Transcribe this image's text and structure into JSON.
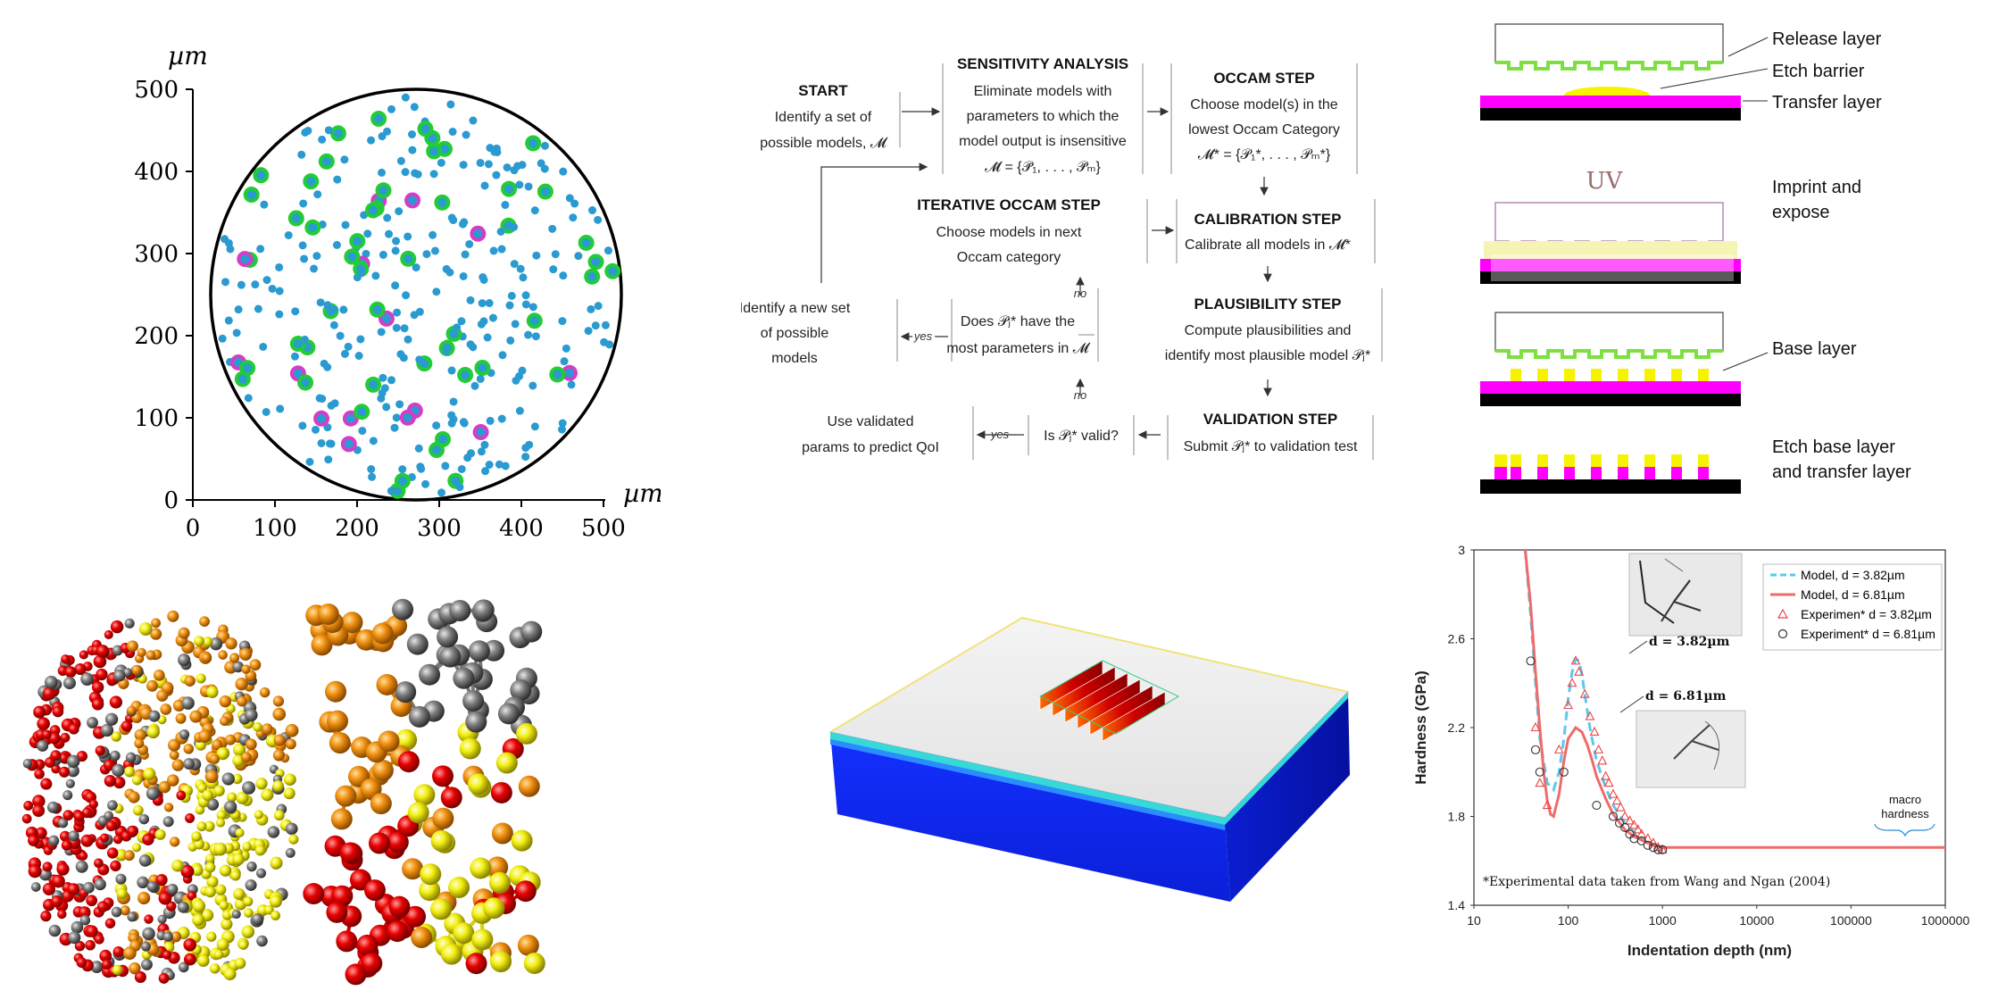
{
  "wafer_plot": {
    "unit_label": "µm",
    "x_ticks": [
      "0",
      "100",
      "200",
      "300",
      "400",
      "500"
    ],
    "y_ticks": [
      "0",
      "100",
      "200",
      "300",
      "400",
      "500"
    ],
    "colors": {
      "blue": "#2a9ad1",
      "green": "#22cc33",
      "magenta": "#d63cc8",
      "circle": "#000000"
    }
  },
  "flowchart": {
    "start": {
      "title": "START",
      "lines": [
        "Identify a set of",
        "possible models, 𝓜"
      ]
    },
    "sensitivity": {
      "title": "SENSITIVITY ANALYSIS",
      "lines": [
        "Eliminate models with",
        "parameters to which the",
        "model output is insensitive",
        "𝓜̄ = {𝒫̄₁, . . . , 𝒫̄ₘ}"
      ]
    },
    "occam": {
      "title": "OCCAM STEP",
      "lines": [
        "Choose model(s) in the",
        "lowest Occam Category",
        "𝓜* = {𝒫₁*, . . . , 𝒫ₘ*}"
      ]
    },
    "iterative": {
      "title": "ITERATIVE OCCAM STEP",
      "lines": [
        "Choose models in next",
        "Occam category"
      ]
    },
    "calibration": {
      "title": "CALIBRATION STEP",
      "lines": [
        "Calibrate all models in 𝓜*"
      ]
    },
    "new_set": {
      "lines": [
        "Identify a new set",
        "of possible",
        "models"
      ]
    },
    "does": {
      "lines": [
        "Does 𝒫ⱼ* have the",
        "most parameters in 𝓜"
      ]
    },
    "plausibility": {
      "title": "PLAUSIBILITY STEP",
      "lines": [
        "Compute plausibilities and",
        "identify most plausible model 𝒫ⱼ*"
      ]
    },
    "use_validated": {
      "lines": [
        "Use validated",
        "params to predict QoI"
      ]
    },
    "is_valid": {
      "lines": [
        "Is 𝒫ⱼ* valid?"
      ]
    },
    "validation": {
      "title": "VALIDATION STEP",
      "lines": [
        "Submit 𝒫ⱼ* to validation test"
      ]
    },
    "no_label": "no",
    "yes_label": "yes"
  },
  "nanoimprint": {
    "labels": {
      "release": "Release layer",
      "etch_barrier": "Etch barrier",
      "transfer": "Transfer layer",
      "imprint_1": "Imprint and",
      "imprint_2": "expose",
      "uv": "UV",
      "base": "Base layer",
      "etch_1": "Etch base layer",
      "etch_2": "and transfer layer"
    },
    "colors": {
      "magenta": "#ff00ff",
      "yellow": "#f7f300",
      "green": "#7ee040",
      "black": "#000000",
      "pale_yellow": "#f6f4b4",
      "uv": "#9a6a6a"
    }
  },
  "hardness_chart": {
    "chart_data": {
      "type": "line",
      "xlabel": "Indentation depth (nm)",
      "ylabel": "Hardness (GPa)",
      "x_scale": "log",
      "xlim": [
        10,
        1000000
      ],
      "ylim": [
        1.4,
        3.0
      ],
      "x_ticks": [
        "10",
        "100",
        "1000",
        "10000",
        "100000",
        "1000000"
      ],
      "y_ticks": [
        "1.4",
        "1.8",
        "2.2",
        "2.6",
        "3"
      ],
      "legend_position": "top-right",
      "series": [
        {
          "name": "Model, d = 3.82µm",
          "style": "dashed",
          "color": "#5bc8ee",
          "x": [
            35,
            40,
            45,
            50,
            60,
            70,
            80,
            90,
            100,
            110,
            120,
            130,
            140,
            150,
            170,
            200,
            250,
            300,
            400,
            500,
            700,
            1000
          ],
          "y": [
            3.0,
            2.7,
            2.4,
            2.15,
            1.95,
            1.92,
            2.0,
            2.15,
            2.33,
            2.45,
            2.51,
            2.5,
            2.44,
            2.35,
            2.2,
            2.05,
            1.93,
            1.85,
            1.77,
            1.73,
            1.68,
            1.66
          ]
        },
        {
          "name": "Model, d = 6.81µm",
          "style": "solid",
          "color": "#ee6b6b",
          "x": [
            35,
            40,
            45,
            50,
            55,
            60,
            65,
            70,
            80,
            90,
            100,
            120,
            140,
            160,
            180,
            200,
            250,
            300,
            400,
            500,
            700,
            1000,
            10000,
            100000,
            1000000
          ],
          "y": [
            3.0,
            2.75,
            2.45,
            2.2,
            2.0,
            1.87,
            1.81,
            1.8,
            1.9,
            2.05,
            2.15,
            2.2,
            2.18,
            2.12,
            2.05,
            1.98,
            1.88,
            1.81,
            1.74,
            1.71,
            1.68,
            1.66,
            1.66,
            1.66,
            1.66
          ]
        },
        {
          "name": "Experimen* d = 3.82µm",
          "style": "triangle",
          "color": "#ee4444",
          "x": [
            45,
            50,
            60,
            80,
            100,
            110,
            120,
            130,
            150,
            170,
            190,
            210,
            230,
            250,
            270,
            300,
            330,
            360,
            400,
            450,
            500,
            550,
            600,
            700,
            800,
            900,
            1000
          ],
          "y": [
            2.2,
            1.95,
            1.85,
            2.1,
            2.3,
            2.4,
            2.5,
            2.45,
            2.35,
            2.25,
            2.18,
            2.1,
            2.05,
            1.98,
            1.95,
            1.9,
            1.87,
            1.84,
            1.8,
            1.78,
            1.76,
            1.74,
            1.72,
            1.7,
            1.68,
            1.66,
            1.65
          ]
        },
        {
          "name": "Experiment* d = 6.81µm",
          "style": "circle",
          "color": "#333333",
          "x": [
            40,
            45,
            50,
            90,
            200,
            300,
            350,
            400,
            450,
            500,
            600,
            700,
            800,
            900,
            1000
          ],
          "y": [
            2.5,
            2.1,
            2.0,
            2.0,
            1.85,
            1.8,
            1.77,
            1.75,
            1.72,
            1.7,
            1.69,
            1.67,
            1.66,
            1.65,
            1.65
          ]
        }
      ],
      "annotations": [
        "d = 3.82µm",
        "d = 6.81µm",
        "macro",
        "hardness",
        "*Experimental data taken from Wang and Ngan  (2004)"
      ]
    }
  }
}
